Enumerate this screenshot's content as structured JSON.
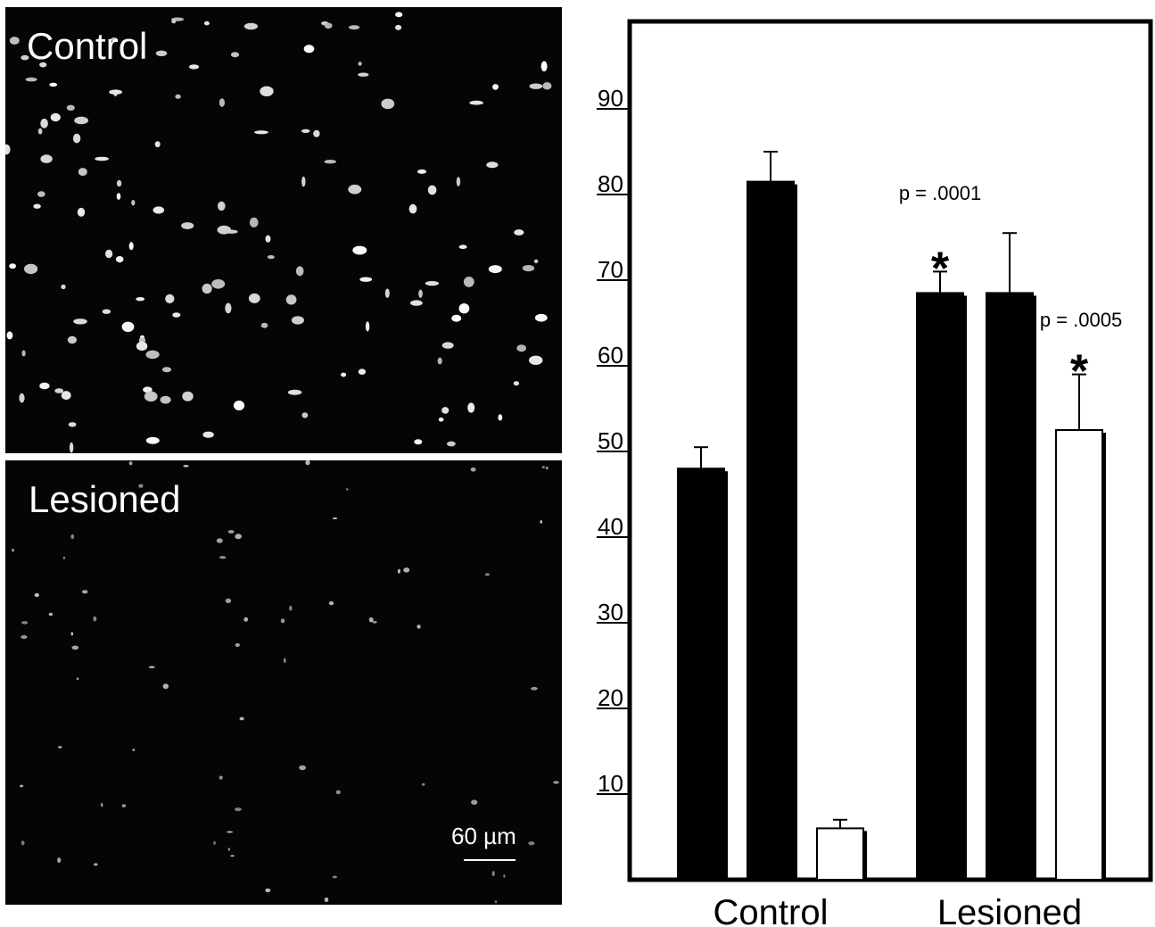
{
  "panels": {
    "control_label": "Control",
    "lesioned_label": "Lesioned",
    "scale_label": "60 µm"
  },
  "chart_data": {
    "type": "bar",
    "title": "",
    "xlabel": "",
    "ylabel": "",
    "ylim": [
      0,
      100
    ],
    "yticks": [
      10,
      20,
      30,
      40,
      50,
      60,
      70,
      80,
      90
    ],
    "groups": [
      {
        "label": "Control",
        "bars": [
          {
            "value": 48,
            "error": 2.5,
            "fill": "#000000"
          },
          {
            "value": 81.5,
            "error": 3.5,
            "fill": "#000000"
          },
          {
            "value": 6,
            "error": 1,
            "fill": "#ffffff"
          }
        ]
      },
      {
        "label": "Lesioned",
        "bars": [
          {
            "value": 68.5,
            "error": 2.5,
            "fill": "#000000",
            "marker": "*",
            "annotation": "p = .0001"
          },
          {
            "value": 68.5,
            "error": 7,
            "fill": "#000000"
          },
          {
            "value": 52.5,
            "error": 6.5,
            "fill": "#ffffff",
            "marker": "*",
            "annotation": "p = .0005"
          }
        ]
      }
    ],
    "grid": false,
    "legend": "none"
  }
}
